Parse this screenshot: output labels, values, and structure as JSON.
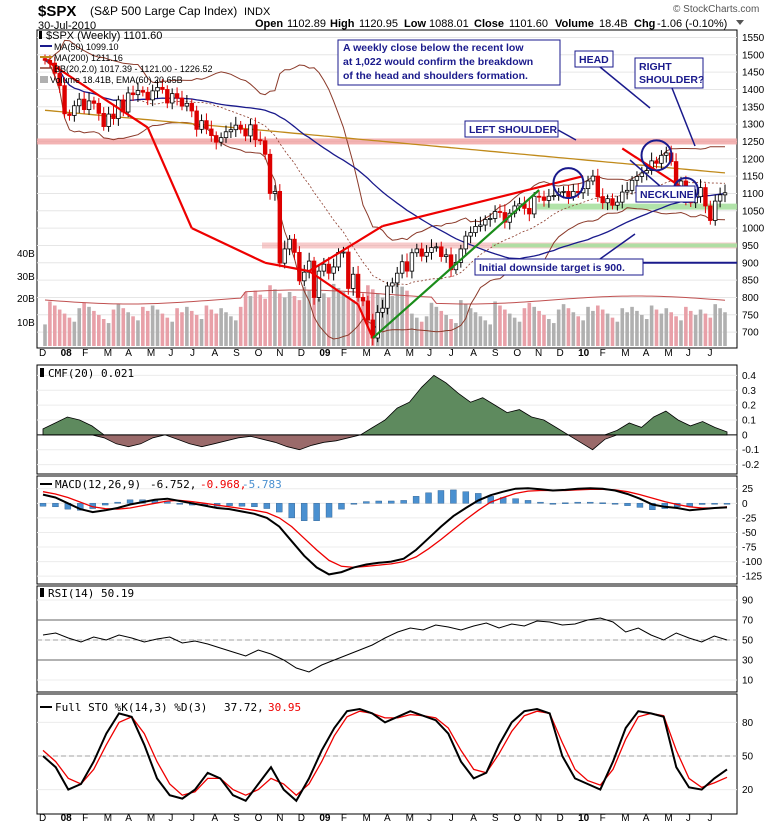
{
  "header": {
    "symbol": "$SPX",
    "name": "(S&P 500 Large Cap Index)",
    "exchange": "INDX",
    "date": "30-Jul-2010",
    "open_label": "Open",
    "open": "1102.89",
    "high_label": "High",
    "high": "1120.95",
    "low_label": "Low",
    "low": "1088.01",
    "close_label": "Close",
    "close": "1101.60",
    "volume_label": "Volume",
    "volume": "18.4B",
    "chg_label": "Chg",
    "chg": "-1.06 (-0.10%)",
    "watermark": "© StockCharts.com"
  },
  "legend": {
    "main": "$SPX (Weekly) 1101.60",
    "ma50": "MA(50) 1099.10",
    "ma200": "MA(200) 1211.16",
    "bb": "BB(20,2.0) 1017.39 - 1121.00 - 1226.52",
    "volume": "Volume 18.41B, EMA(60) 20.65B"
  },
  "annotations": {
    "note": [
      "A weekly close below the recent low",
      "at 1,022 would confirm the breakdown",
      "of the head and shoulders formation."
    ],
    "head": "HEAD",
    "left_shoulder": "LEFT SHOULDER",
    "right_shoulder": [
      "RIGHT",
      "SHOULDER?"
    ],
    "neckline": "NECKLINE",
    "target": "Initial downside target is 900."
  },
  "indicators": {
    "cmf": "CMF(20) 0.021",
    "macd_label": "MACD(12,26,9)",
    "macd_v1": "-6.752,",
    "macd_v2": "-0.968,",
    "macd_v3": "-5.783",
    "rsi": "RSI(14) 50.19",
    "sto_label": "Full STO %K(14,3) %D(3)",
    "sto_v1": "37.72,",
    "sto_v2": "30.95"
  },
  "colors": {
    "up": "#000000",
    "down": "#dd0000",
    "ma50": "#1a1a8c",
    "ma200": "#c08a1a",
    "bb": "#8b3a2a",
    "trend": "#ee0000",
    "uptrend": "#1a8c1a",
    "vol_up": "#b0b0b0",
    "vol_down": "#e8a0a8",
    "cmf_fill": "#5e8a5e",
    "cmf_neg": "#9a6a6a",
    "hist": "#4a90d0",
    "signal": "#ee0000",
    "annot": "#1a1a8c",
    "resistance": "#f0a0a0",
    "support": "#a8e0a0"
  },
  "x_axis": {
    "labels": [
      "D",
      "08",
      "F",
      "M",
      "A",
      "M",
      "J",
      "J",
      "A",
      "S",
      "O",
      "N",
      "D",
      "09",
      "F",
      "M",
      "A",
      "M",
      "J",
      "J",
      "A",
      "S",
      "O",
      "N",
      "D",
      "10",
      "F",
      "M",
      "A",
      "M",
      "J",
      "J"
    ]
  },
  "chart_data": [
    {
      "type": "candlestick",
      "title": "$SPX (Weekly) 1101.60",
      "interval": "weekly",
      "x_range": [
        "Dec 2007",
        "Jul 2010"
      ],
      "ylim": [
        660,
        1560
      ],
      "y_ticks": [
        700,
        750,
        800,
        850,
        900,
        950,
        1000,
        1050,
        1100,
        1150,
        1200,
        1250,
        1300,
        1350,
        1400,
        1450,
        1500,
        1550
      ],
      "close_series": [
        1484,
        1476,
        1447,
        1411,
        1330,
        1325,
        1353,
        1372,
        1342,
        1367,
        1360,
        1331,
        1293,
        1329,
        1316,
        1370,
        1335,
        1390,
        1385,
        1397,
        1392,
        1370,
        1396,
        1406,
        1400,
        1361,
        1388,
        1375,
        1352,
        1360,
        1338,
        1285,
        1310,
        1286,
        1267,
        1248,
        1261,
        1278,
        1284,
        1297,
        1285,
        1266,
        1298,
        1255,
        1252,
        1213,
        1100,
        1106,
        899,
        940,
        968,
        930,
        848,
        873,
        905,
        800,
        876,
        896,
        870,
        888,
        930,
        931,
        826,
        867,
        800,
        790,
        735,
        683,
        757,
        769,
        833,
        842,
        870,
        903,
        876,
        929,
        940,
        919,
        930,
        944,
        946,
        918,
        923,
        880,
        901,
        940,
        977,
        987,
        1005,
        1009,
        1025,
        1028,
        1048,
        1045,
        1017,
        1043,
        1064,
        1070,
        1057,
        1041,
        1092,
        1090,
        1080,
        1092,
        1094,
        1104,
        1106,
        1091,
        1106,
        1102,
        1114,
        1136,
        1150,
        1091,
        1073,
        1085,
        1066,
        1075,
        1104,
        1109,
        1138,
        1149,
        1159,
        1166,
        1194,
        1187,
        1210,
        1217,
        1192,
        1110,
        1136,
        1087,
        1073,
        1091,
        1117,
        1064,
        1022,
        1078,
        1096,
        1102
      ],
      "annotations": [
        "HEAD",
        "LEFT SHOULDER",
        "RIGHT SHOULDER?",
        "NECKLINE",
        "A weekly close below the recent low at 1,022 would confirm the breakdown of the head and shoulders formation.",
        "Initial downside target is 900."
      ],
      "levels": {
        "resistance_high": 1250,
        "resistance_mid": 950,
        "neckline": 1062,
        "target": 900
      }
    },
    {
      "type": "bar",
      "title": "Volume 18.41B, EMA(60) 20.65B",
      "y_ticks": [
        "10B",
        "20B",
        "30B",
        "40B"
      ],
      "note": "weekly volume bars, grey up weeks, pink down weeks"
    },
    {
      "type": "area",
      "title": "CMF(20) 0.021",
      "ylim": [
        -0.25,
        0.45
      ],
      "y_ticks": [
        0.4,
        0.3,
        0.2,
        0.1,
        0.0,
        -0.1,
        -0.2
      ],
      "values": [
        0.04,
        0.08,
        0.12,
        0.1,
        0.06,
        -0.02,
        -0.06,
        -0.08,
        -0.06,
        -0.02,
        0.0,
        -0.03,
        -0.06,
        -0.08,
        -0.06,
        -0.04,
        -0.02,
        -0.01,
        -0.03,
        -0.05,
        -0.08,
        -0.1,
        -0.07,
        -0.05,
        -0.04,
        -0.02,
        0.0,
        0.05,
        0.1,
        0.18,
        0.22,
        0.32,
        0.4,
        0.35,
        0.28,
        0.22,
        0.25,
        0.2,
        0.15,
        0.17,
        0.12,
        0.1,
        0.05,
        0.0,
        -0.05,
        -0.1,
        -0.03,
        0.03,
        0.08,
        0.05,
        0.12,
        0.16,
        0.1,
        0.06,
        0.09,
        0.05,
        0.02
      ]
    },
    {
      "type": "line",
      "title": "MACD(12,26,9) -6.752, -0.968, -5.783",
      "ylim": [
        -135,
        40
      ],
      "y_ticks": [
        25,
        0,
        -25,
        -50,
        -75,
        -100,
        -125
      ],
      "series": [
        {
          "name": "MACD",
          "values": [
            15,
            10,
            0,
            -10,
            -15,
            -12,
            -8,
            -2,
            2,
            6,
            8,
            4,
            0,
            -4,
            -8,
            -10,
            -14,
            -18,
            -25,
            -40,
            -65,
            -90,
            -110,
            -122,
            -118,
            -110,
            -105,
            -102,
            -100,
            -95,
            -80,
            -60,
            -40,
            -22,
            -8,
            5,
            14,
            20,
            25,
            26,
            24,
            22,
            23,
            25,
            26,
            25,
            22,
            16,
            8,
            -2,
            -6,
            -8,
            -12,
            -10,
            -8,
            -7
          ]
        },
        {
          "name": "Signal",
          "values": [
            20,
            16,
            10,
            2,
            -6,
            -9,
            -10,
            -8,
            -4,
            0,
            4,
            5,
            3,
            0,
            -3,
            -6,
            -9,
            -12,
            -16,
            -25,
            -40,
            -60,
            -80,
            -98,
            -108,
            -110,
            -108,
            -106,
            -104,
            -100,
            -92,
            -78,
            -62,
            -45,
            -28,
            -12,
            2,
            10,
            17,
            21,
            22,
            22,
            22,
            23,
            24,
            24,
            23,
            20,
            15,
            9,
            3,
            -2,
            -6,
            -8,
            -8,
            -6
          ]
        }
      ]
    },
    {
      "type": "line",
      "title": "RSI(14) 50.19",
      "ylim": [
        0,
        100
      ],
      "y_ticks": [
        90,
        70,
        50,
        30,
        10
      ],
      "values": [
        55,
        57,
        52,
        48,
        53,
        50,
        55,
        52,
        48,
        51,
        53,
        47,
        49,
        46,
        42,
        38,
        34,
        40,
        36,
        30,
        22,
        18,
        25,
        30,
        35,
        40,
        45,
        52,
        58,
        62,
        60,
        65,
        63,
        60,
        64,
        67,
        62,
        66,
        64,
        69,
        68,
        65,
        66,
        70,
        72,
        68,
        58,
        62,
        55,
        50,
        57,
        52,
        48,
        54,
        50
      ]
    },
    {
      "type": "line",
      "title": "Full STO %K(14,3) %D(3) 37.72, 30.95",
      "ylim": [
        0,
        100
      ],
      "y_ticks": [
        80,
        50,
        20
      ],
      "series": [
        {
          "name": "%K",
          "values": [
            50,
            40,
            20,
            25,
            45,
            70,
            88,
            85,
            60,
            30,
            15,
            12,
            20,
            35,
            30,
            15,
            10,
            25,
            40,
            20,
            10,
            30,
            55,
            75,
            90,
            92,
            88,
            80,
            85,
            90,
            86,
            82,
            70,
            45,
            30,
            35,
            60,
            80,
            90,
            92,
            88,
            50,
            30,
            25,
            20,
            45,
            75,
            90,
            88,
            85,
            40,
            22,
            20,
            30,
            38
          ]
        },
        {
          "name": "%D",
          "values": [
            55,
            45,
            30,
            25,
            38,
            60,
            80,
            85,
            70,
            45,
            25,
            15,
            18,
            30,
            30,
            20,
            15,
            20,
            30,
            25,
            15,
            25,
            45,
            68,
            85,
            90,
            88,
            84,
            84,
            87,
            86,
            84,
            75,
            55,
            38,
            35,
            52,
            72,
            86,
            90,
            88,
            62,
            38,
            28,
            24,
            38,
            65,
            85,
            88,
            86,
            55,
            30,
            22,
            26,
            31
          ]
        }
      ]
    }
  ]
}
